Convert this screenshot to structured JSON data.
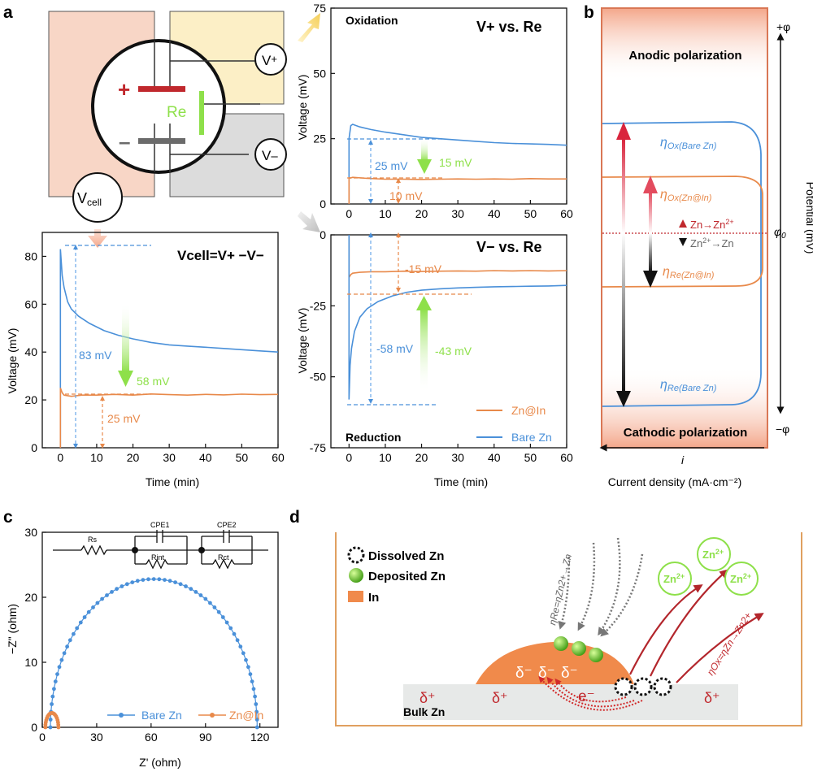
{
  "panel_labels": {
    "a": "a",
    "b": "b",
    "c": "c",
    "d": "d"
  },
  "colors": {
    "orange": "#e8894a",
    "blue": "#4a90d9",
    "green": "#8ee04a",
    "red": "#c0282d",
    "dark": "#222222",
    "peach": "#f7d3c2"
  },
  "schematic": {
    "plus": "+",
    "minus": "–",
    "re": "Re",
    "vplus_v": "V",
    "vplus_sign": "+",
    "vminus_v": "V",
    "vminus_sign": "–",
    "vcell_v": "V",
    "vcell_sub": "cell"
  },
  "chart_data": [
    {
      "id": "vcell",
      "type": "line",
      "annotation_title": "Vcell=V+ −V−",
      "xlabel": "Time (min)",
      "ylabel": "Voltage (mV)",
      "xlim": [
        -5,
        60
      ],
      "ylim": [
        0,
        90
      ],
      "xticks": [
        0,
        10,
        20,
        30,
        40,
        50,
        60
      ],
      "yticks": [
        0,
        20,
        40,
        60,
        80
      ],
      "series": [
        {
          "color": "blue",
          "x": [
            0,
            0.5,
            1,
            2,
            3,
            5,
            8,
            12,
            16,
            20,
            25,
            30,
            35,
            40,
            45,
            50,
            55,
            60
          ],
          "y": [
            83,
            72,
            67,
            61,
            58,
            55,
            52,
            49,
            47,
            45.5,
            44,
            43,
            42.5,
            42,
            41.5,
            41,
            40.5,
            40
          ]
        },
        {
          "color": "orange",
          "x": [
            0,
            0.5,
            1,
            3,
            6,
            10,
            15,
            20,
            25,
            30,
            35,
            40,
            45,
            50,
            55,
            60
          ],
          "y": [
            25,
            23,
            22,
            21.5,
            22,
            22,
            22.3,
            22,
            22.5,
            22.2,
            22,
            22.3,
            22.1,
            22.4,
            22.2,
            22.3
          ]
        }
      ],
      "annotations": {
        "a1": "83 mV",
        "a2": "58 mV",
        "a3": "25 mV"
      }
    },
    {
      "id": "vplus",
      "type": "line",
      "corner_label": "Oxidation",
      "title": "V+ vs. Re",
      "xlabel": "",
      "ylabel": "Voltage (mV)",
      "xlim": [
        -5,
        60
      ],
      "ylim": [
        0,
        75
      ],
      "xticks": [
        0,
        10,
        20,
        30,
        40,
        50,
        60
      ],
      "yticks": [
        0,
        25,
        50,
        75
      ],
      "series": [
        {
          "color": "blue",
          "x": [
            0,
            0.5,
            1,
            3,
            6,
            10,
            15,
            20,
            25,
            30,
            35,
            40,
            45,
            50,
            55,
            60
          ],
          "y": [
            25,
            30,
            30.5,
            29.5,
            28.5,
            27.5,
            26.5,
            25.5,
            25,
            24.5,
            24,
            23.5,
            23.2,
            23,
            22.8,
            22.5
          ]
        },
        {
          "color": "orange",
          "x": [
            0,
            0.5,
            1,
            5,
            10,
            15,
            20,
            25,
            30,
            35,
            40,
            45,
            50,
            55,
            60
          ],
          "y": [
            10,
            10,
            10.2,
            9.8,
            9.5,
            9.5,
            9.4,
            9.5,
            9.6,
            9.5,
            9.6,
            9.5,
            9.7,
            9.6,
            9.6
          ]
        }
      ],
      "annotations": {
        "a1": "25 mV",
        "a2": "15 mV",
        "a3": "10 mV"
      }
    },
    {
      "id": "vminus",
      "type": "line",
      "corner_label": "Reduction",
      "title": "V− vs. Re",
      "xlabel": "Time (min)",
      "ylabel": "Voltage (mV)",
      "xlim": [
        -5,
        60
      ],
      "ylim": [
        -75,
        0
      ],
      "xticks": [
        0,
        10,
        20,
        30,
        40,
        50,
        60
      ],
      "yticks": [
        0,
        -25,
        -50,
        -75
      ],
      "series": [
        {
          "name": "Zn@In",
          "color": "orange",
          "x": [
            0,
            0.5,
            1,
            3,
            6,
            10,
            15,
            20,
            25,
            30,
            35,
            40,
            45,
            50,
            55,
            60
          ],
          "y": [
            -15,
            -14,
            -13.5,
            -13.2,
            -13,
            -13,
            -12.8,
            -12.9,
            -12.8,
            -12.7,
            -12.8,
            -12.6,
            -12.7,
            -12.6,
            -12.7,
            -12.6
          ]
        },
        {
          "name": "Bare Zn",
          "color": "blue",
          "x": [
            0,
            0.3,
            0.7,
            1.5,
            3,
            5,
            8,
            12,
            16,
            20,
            25,
            30,
            35,
            40,
            45,
            50,
            55,
            60
          ],
          "y": [
            -58,
            -46,
            -40,
            -34,
            -29,
            -26,
            -23.5,
            -21.5,
            -20.2,
            -19.5,
            -19,
            -18.7,
            -18.5,
            -18.3,
            -18.2,
            -18.1,
            -18,
            -17.8
          ]
        }
      ],
      "annotations": {
        "a1": "-15 mV",
        "a2": "-58 mV",
        "a3": "-43 mV"
      }
    },
    {
      "id": "eis",
      "type": "scatter",
      "xlabel": "Z' (ohm)",
      "ylabel": "−Z\" (ohm)",
      "xlim": [
        0,
        130
      ],
      "ylim": [
        0,
        30
      ],
      "xticks": [
        0,
        30,
        60,
        90,
        120
      ],
      "yticks": [
        0,
        10,
        20,
        30
      ],
      "series": [
        {
          "name": "Bare Zn",
          "color": "blue",
          "center": 61.5,
          "radius": 57,
          "height": 22.8
        },
        {
          "name": "Zn@In",
          "color": "orange",
          "center": 5.3,
          "radius": 3.6,
          "height": 2.2
        }
      ],
      "circuit": {
        "rs": "Rs",
        "cpe1": "CPE1",
        "rint": "Rint",
        "cpe2": "CPE2",
        "rct": "Rct"
      }
    }
  ],
  "panel_b": {
    "anodic": "Anodic polarization",
    "cathodic": "Cathodic polarization",
    "plus_phi": "+φ",
    "minus_phi": "−φ",
    "phi0": "φ",
    "i": "i",
    "xlabel": "Current density (mA·cm⁻²)",
    "ylabel": "Potential (mV)",
    "eta": "η",
    "ox_bare": "Ox(Bare Zn)",
    "ox_znin": "Ox(Zn@In)",
    "re_znin": "Re(Zn@In)",
    "re_bare": "Re(Bare Zn)",
    "zn_ox": "Zn→Zn",
    "zn_red": "→Zn",
    "zn2": "Zn",
    "sup": "2+"
  },
  "panel_d": {
    "legend_dissolved": "Dissolved Zn",
    "legend_deposited": "Deposited Zn",
    "legend_in": "In",
    "bulk": "Bulk Zn",
    "delta_plus": "δ⁺",
    "delta_minus": "δ⁻",
    "e_minus": "e⁻",
    "zn_ion": "Zn",
    "eta_re": "ηRe=ηZn2+→Zn",
    "eta_ox": "ηOx=ηZn→Zn2+"
  }
}
